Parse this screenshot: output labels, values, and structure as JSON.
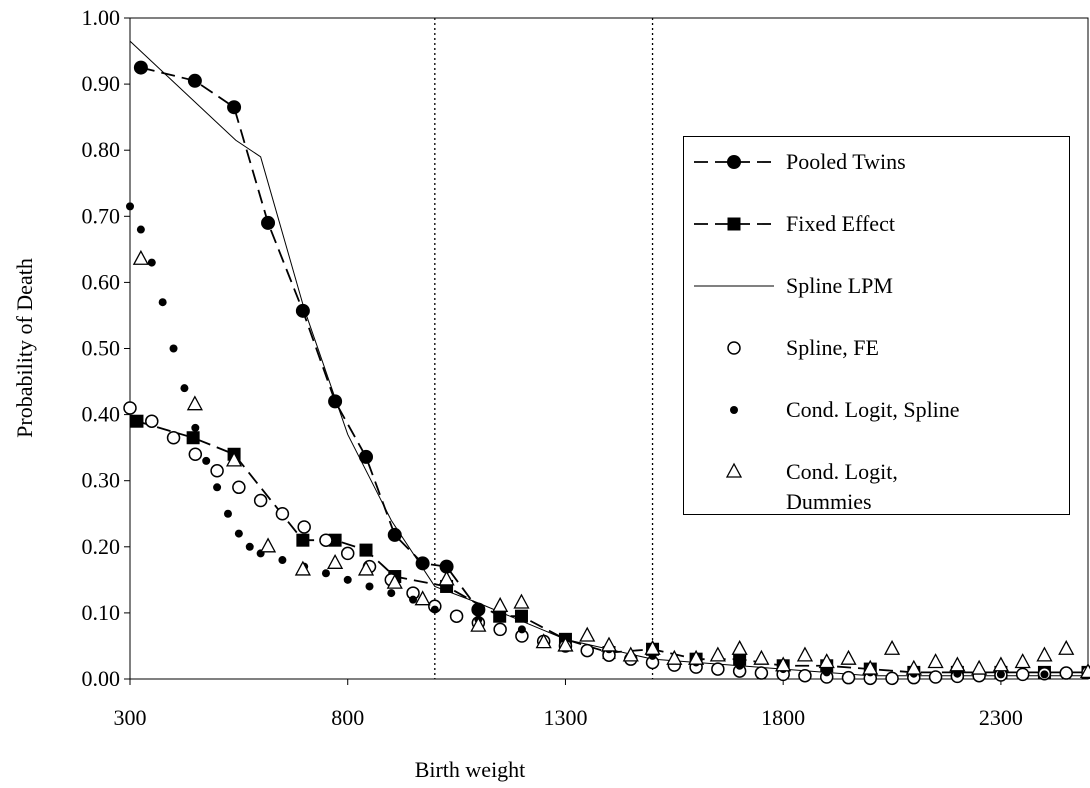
{
  "chart_data": {
    "type": "line",
    "xlabel": "Birth weight",
    "ylabel": "Probability of Death",
    "xlim": [
      300,
      2500
    ],
    "ylim": [
      0,
      1
    ],
    "xticks": [
      300,
      800,
      1300,
      1800,
      2300
    ],
    "yticks": [
      {
        "value": 0,
        "label": "0.00"
      },
      {
        "value": 0.1,
        "label": "0.10"
      },
      {
        "value": 0.2,
        "label": "0.20"
      },
      {
        "value": 0.3,
        "label": "0.30"
      },
      {
        "value": 0.4,
        "label": "0.40"
      },
      {
        "value": 0.5,
        "label": "0.50"
      },
      {
        "value": 0.6,
        "label": "0.60"
      },
      {
        "value": 0.7,
        "label": "0.70"
      },
      {
        "value": 0.8,
        "label": "0.80"
      },
      {
        "value": 0.9,
        "label": "0.90"
      },
      {
        "value": 1,
        "label": "1.00"
      }
    ],
    "vlines": [
      1000,
      1500
    ],
    "legend": "right",
    "series": [
      {
        "name": "Pooled Twins",
        "color": "#000000",
        "dash": "dashed",
        "marker": "circle-filled",
        "x": [
          325,
          449,
          539,
          617,
          697,
          771,
          842,
          908,
          972,
          1027,
          1100
        ],
        "values": [
          0.925,
          0.905,
          0.865,
          0.69,
          0.557,
          0.42,
          0.336,
          0.218,
          0.175,
          0.17,
          0.105
        ]
      },
      {
        "name": "Fixed Effect",
        "color": "#000000",
        "dash": "dashed",
        "marker": "square",
        "x": [
          316,
          445,
          539,
          697,
          771,
          842,
          908,
          1027,
          1149,
          1199,
          1300,
          1400,
          1500,
          1600,
          1700,
          1800,
          1900,
          2000,
          2100,
          2200,
          2300,
          2400,
          2500
        ],
        "values": [
          0.39,
          0.365,
          0.34,
          0.21,
          0.21,
          0.195,
          0.155,
          0.14,
          0.095,
          0.095,
          0.06,
          0.04,
          0.045,
          0.03,
          0.03,
          0.02,
          0.02,
          0.015,
          0.01,
          0.01,
          0.01,
          0.01,
          0.01
        ]
      },
      {
        "name": "Spline LPM",
        "color": "#000000",
        "dash": "solid",
        "marker": "none",
        "x": [
          300,
          543,
          600,
          700,
          800,
          900,
          1000,
          1100,
          1300,
          1500,
          2000,
          2500
        ],
        "values": [
          0.965,
          0.815,
          0.79,
          0.56,
          0.37,
          0.24,
          0.14,
          0.115,
          0.06,
          0.03,
          0.005,
          0.005
        ]
      },
      {
        "name": "Spline, FE",
        "color": "#000000",
        "dash": "none",
        "marker": "circle-open",
        "x": [
          300,
          350,
          400,
          450,
          500,
          550,
          600,
          650,
          700,
          750,
          800,
          850,
          900,
          950,
          1000,
          1050,
          1100,
          1150,
          1200,
          1250,
          1300,
          1350,
          1400,
          1450,
          1500,
          1550,
          1600,
          1650,
          1700,
          1750,
          1800,
          1850,
          1900,
          1950,
          2000,
          2050,
          2100,
          2150,
          2200,
          2250,
          2300,
          2350,
          2400,
          2450,
          2500
        ],
        "values": [
          0.41,
          0.39,
          0.365,
          0.34,
          0.315,
          0.29,
          0.27,
          0.25,
          0.23,
          0.21,
          0.19,
          0.17,
          0.15,
          0.13,
          0.11,
          0.095,
          0.085,
          0.075,
          0.065,
          0.057,
          0.05,
          0.043,
          0.036,
          0.03,
          0.025,
          0.021,
          0.018,
          0.015,
          0.012,
          0.009,
          0.007,
          0.005,
          0.003,
          0.002,
          0.001,
          0.001,
          0.002,
          0.003,
          0.004,
          0.005,
          0.006,
          0.007,
          0.008,
          0.009,
          0.01
        ]
      },
      {
        "name": "Cond. Logit, Spline",
        "color": "#000000",
        "dash": "none",
        "marker": "dot",
        "x": [
          300,
          325,
          350,
          375,
          400,
          425,
          450,
          475,
          500,
          525,
          550,
          575,
          600,
          650,
          700,
          750,
          800,
          850,
          900,
          950,
          1000,
          1100,
          1200,
          1300,
          1400,
          1500,
          1600,
          1700,
          1800,
          1900,
          2000,
          2100,
          2200,
          2300,
          2400,
          2500
        ],
        "values": [
          0.715,
          0.68,
          0.63,
          0.57,
          0.5,
          0.44,
          0.38,
          0.33,
          0.29,
          0.25,
          0.22,
          0.2,
          0.19,
          0.18,
          0.17,
          0.16,
          0.15,
          0.14,
          0.13,
          0.12,
          0.105,
          0.09,
          0.075,
          0.06,
          0.045,
          0.035,
          0.025,
          0.02,
          0.015,
          0.01,
          0.01,
          0.008,
          0.008,
          0.007,
          0.007,
          0.006
        ]
      },
      {
        "name": "Cond. Logit, Dummies",
        "color": "#000000",
        "dash": "none",
        "marker": "triangle-open",
        "x": [
          325,
          449,
          539,
          617,
          697,
          771,
          842,
          908,
          972,
          1027,
          1100,
          1150,
          1199,
          1250,
          1300,
          1350,
          1400,
          1450,
          1500,
          1550,
          1600,
          1650,
          1700,
          1750,
          1800,
          1850,
          1900,
          1950,
          2000,
          2050,
          2100,
          2150,
          2200,
          2250,
          2300,
          2350,
          2400,
          2450,
          2500
        ],
        "values": [
          0.635,
          0.415,
          0.33,
          0.2,
          0.165,
          0.175,
          0.165,
          0.145,
          0.12,
          0.15,
          0.08,
          0.11,
          0.115,
          0.055,
          0.05,
          0.065,
          0.05,
          0.035,
          0.045,
          0.03,
          0.03,
          0.035,
          0.045,
          0.03,
          0.02,
          0.035,
          0.025,
          0.03,
          0.015,
          0.045,
          0.015,
          0.025,
          0.02,
          0.015,
          0.02,
          0.025,
          0.035,
          0.045,
          0.01
        ]
      }
    ]
  }
}
